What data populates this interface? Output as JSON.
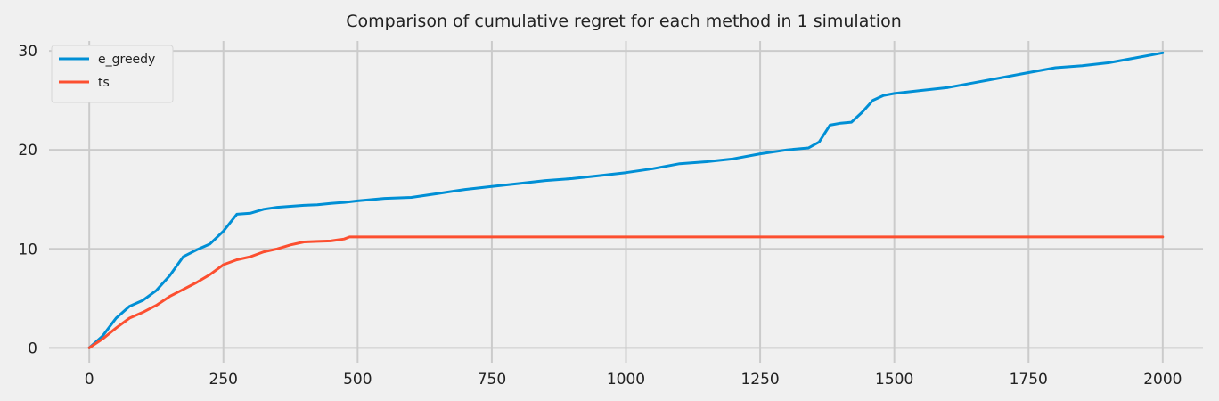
{
  "chart_data": {
    "type": "line",
    "title": "Comparison of cumulative regret for each method in 1 simulation",
    "xlabel": "",
    "ylabel": "",
    "xlim": [
      -75,
      2075
    ],
    "ylim": [
      -1.5,
      31
    ],
    "x_ticks": [
      0,
      250,
      500,
      750,
      1000,
      1250,
      1500,
      1750,
      2000
    ],
    "y_ticks": [
      0,
      10,
      20,
      30
    ],
    "grid": true,
    "legend_position": "top-left",
    "background": "#f0f0f0",
    "series": [
      {
        "name": "e_greedy",
        "color": "#008fd5",
        "x": [
          0,
          25,
          50,
          75,
          100,
          125,
          150,
          175,
          200,
          225,
          250,
          275,
          300,
          325,
          350,
          375,
          400,
          425,
          450,
          475,
          500,
          550,
          600,
          650,
          700,
          750,
          800,
          850,
          900,
          950,
          1000,
          1050,
          1100,
          1150,
          1200,
          1250,
          1300,
          1340,
          1360,
          1380,
          1400,
          1420,
          1440,
          1460,
          1480,
          1500,
          1550,
          1600,
          1650,
          1700,
          1750,
          1800,
          1850,
          1900,
          1950,
          2000
        ],
        "y": [
          0,
          1.2,
          3.0,
          4.2,
          4.8,
          5.8,
          7.3,
          9.2,
          9.9,
          10.5,
          11.8,
          13.5,
          13.6,
          14.0,
          14.2,
          14.3,
          14.4,
          14.45,
          14.6,
          14.7,
          14.85,
          15.1,
          15.2,
          15.6,
          16.0,
          16.3,
          16.6,
          16.9,
          17.1,
          17.4,
          17.7,
          18.1,
          18.6,
          18.8,
          19.1,
          19.6,
          20.0,
          20.2,
          20.8,
          22.5,
          22.7,
          22.8,
          23.8,
          25.0,
          25.5,
          25.7,
          26.0,
          26.3,
          26.8,
          27.3,
          27.8,
          28.3,
          28.5,
          28.8,
          29.3,
          29.8
        ]
      },
      {
        "name": "ts",
        "color": "#fc4f30",
        "x": [
          0,
          25,
          50,
          75,
          100,
          125,
          150,
          175,
          200,
          225,
          250,
          275,
          300,
          325,
          350,
          375,
          400,
          425,
          450,
          475,
          485,
          500,
          750,
          1000,
          1250,
          1500,
          1750,
          2000
        ],
        "y": [
          0,
          0.9,
          2.0,
          3.0,
          3.6,
          4.3,
          5.2,
          5.9,
          6.6,
          7.4,
          8.4,
          8.9,
          9.2,
          9.7,
          10.0,
          10.4,
          10.7,
          10.75,
          10.8,
          11.0,
          11.2,
          11.2,
          11.2,
          11.2,
          11.2,
          11.2,
          11.2,
          11.2
        ]
      }
    ]
  }
}
